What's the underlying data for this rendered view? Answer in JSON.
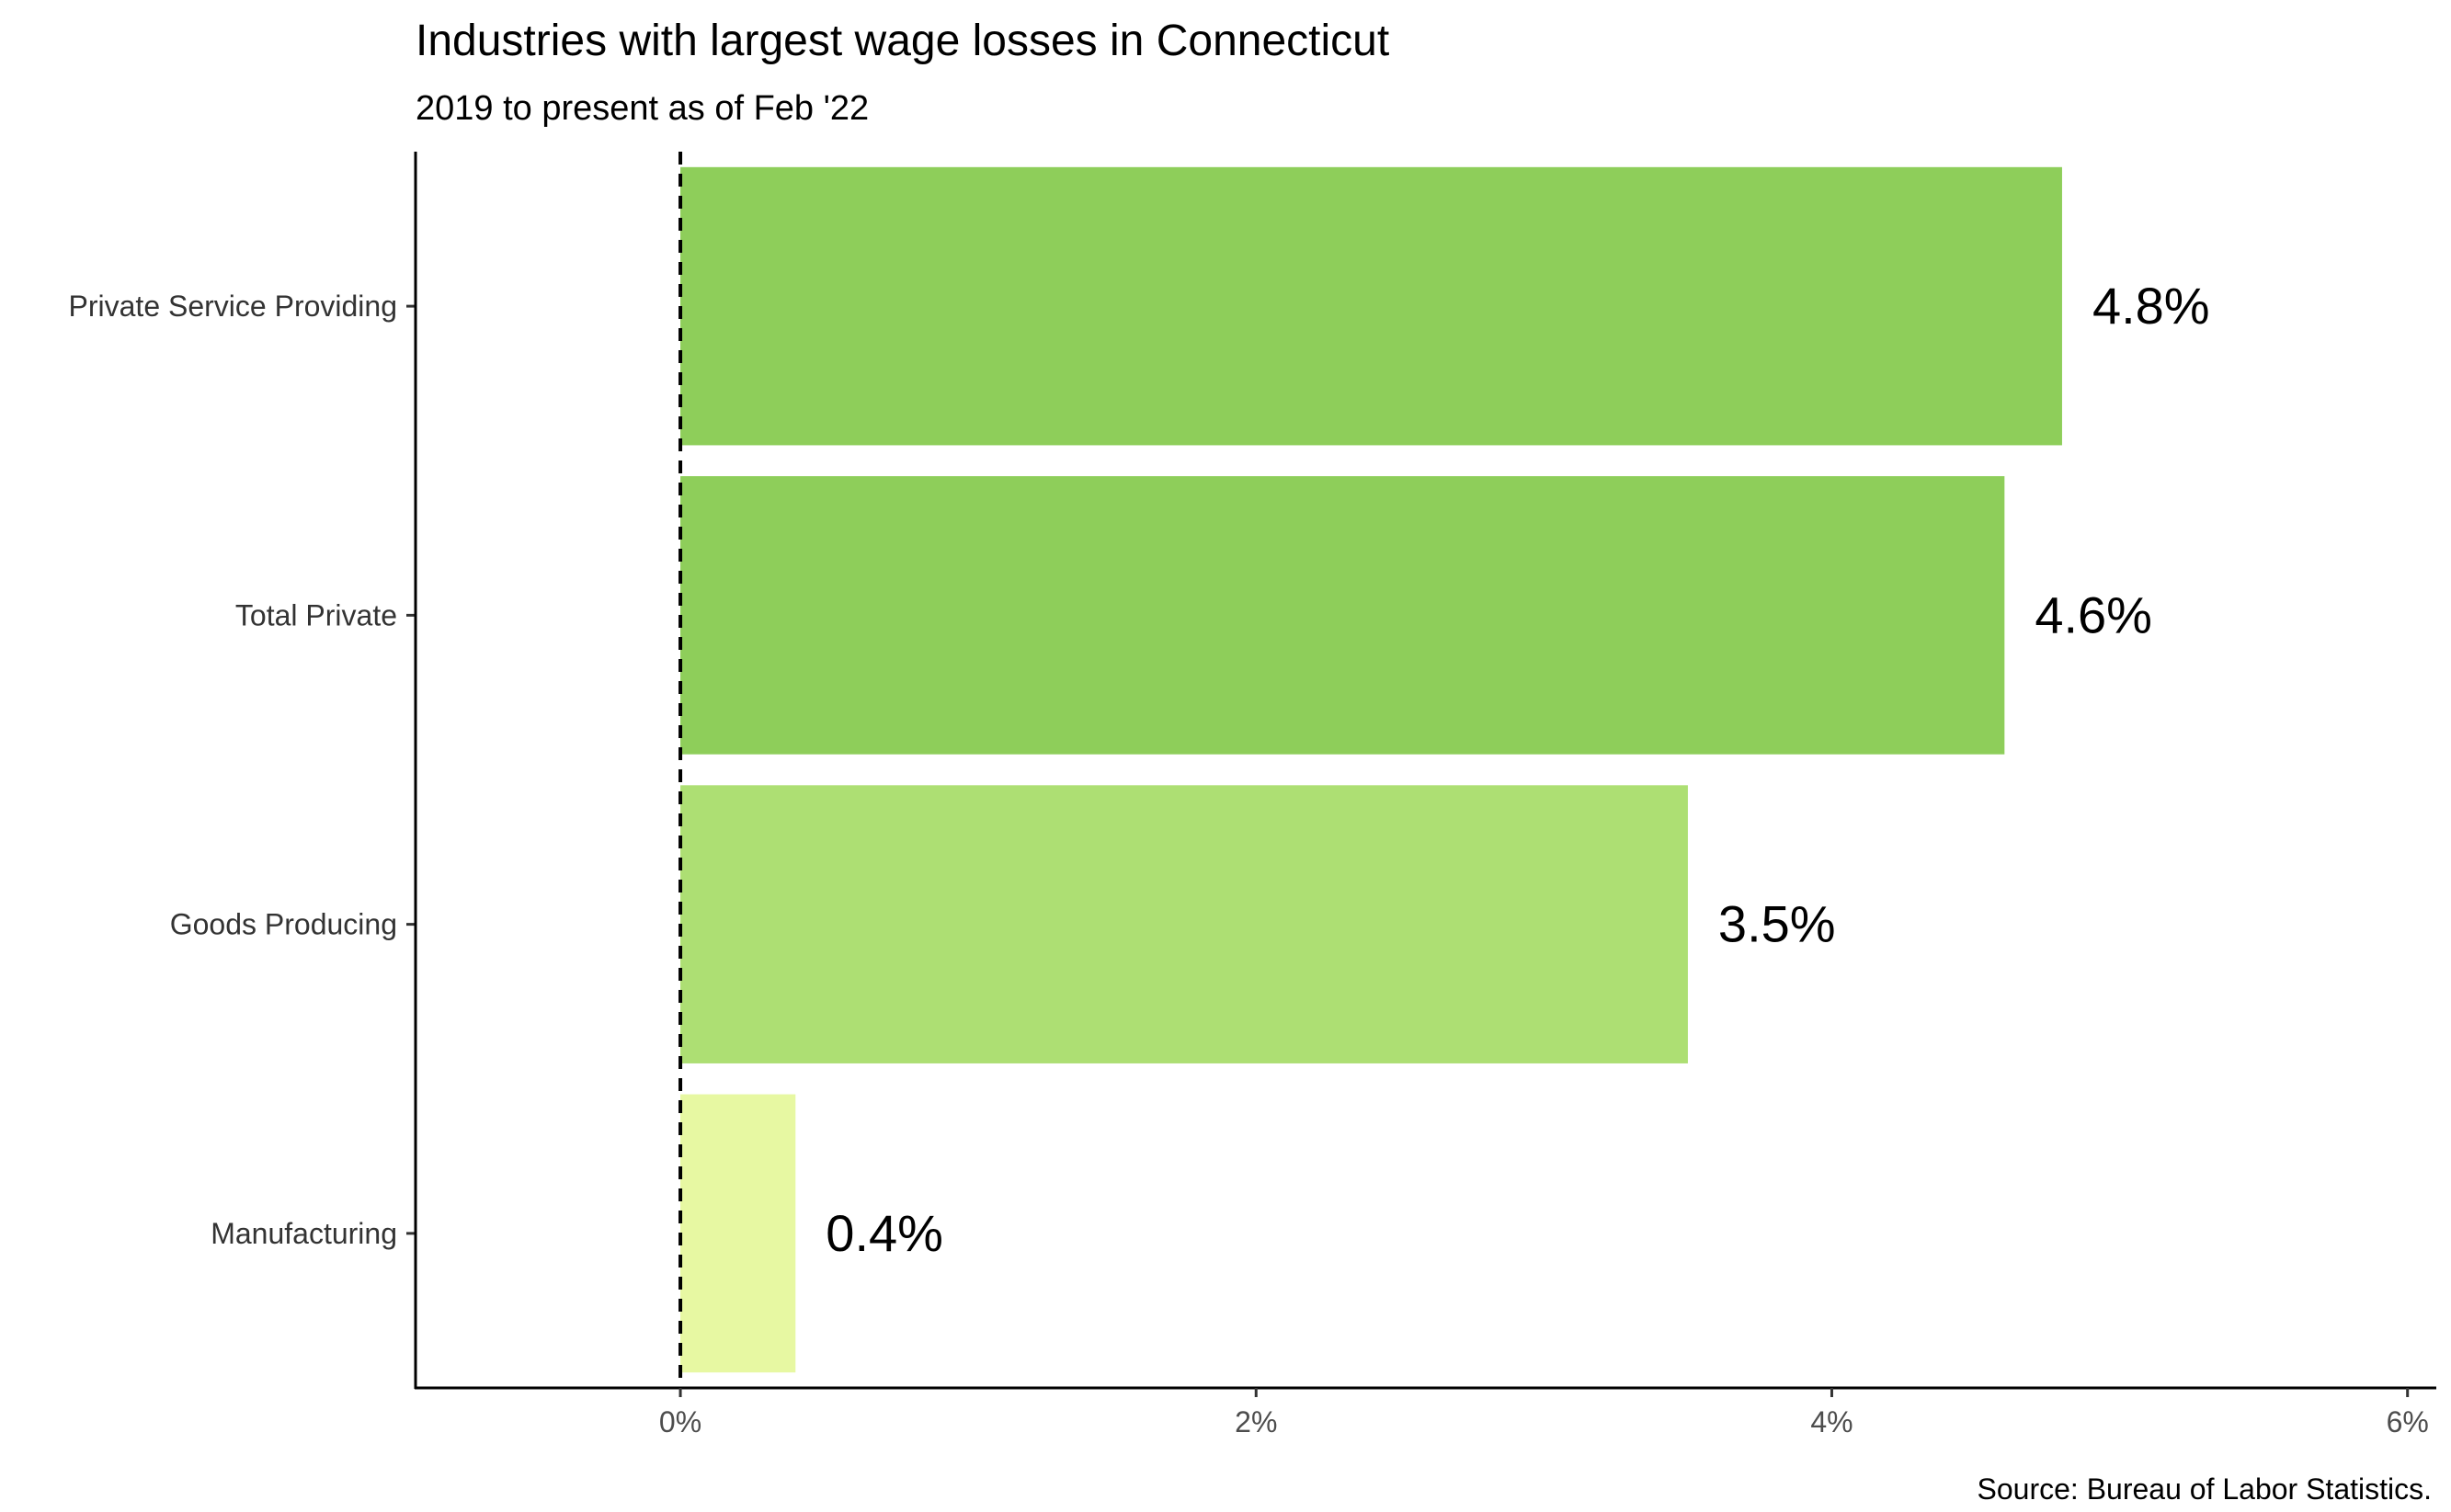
{
  "chart_data": {
    "type": "bar",
    "orientation": "horizontal",
    "title": "Industries with largest wage losses in Connecticut",
    "subtitle": "2019 to present as of Feb '22",
    "caption": "Source: Bureau of Labor Statistics.",
    "categories": [
      "Private Service Providing",
      "Total Private",
      "Goods Producing",
      "Manufacturing"
    ],
    "values": [
      4.8,
      4.6,
      3.5,
      0.4
    ],
    "labels": [
      "4.8%",
      "4.6%",
      "3.5%",
      "0.4%"
    ],
    "colors": [
      "#8ece5a",
      "#8ece5a",
      "#addf73",
      "#e7f8a2"
    ],
    "xlim": [
      -0.92,
      6.1
    ],
    "xticks": [
      0,
      2,
      4,
      6
    ],
    "xtick_labels": [
      "0%",
      "2%",
      "4%",
      "6%"
    ],
    "reference_line": 0,
    "xlabel": "",
    "ylabel": ""
  }
}
